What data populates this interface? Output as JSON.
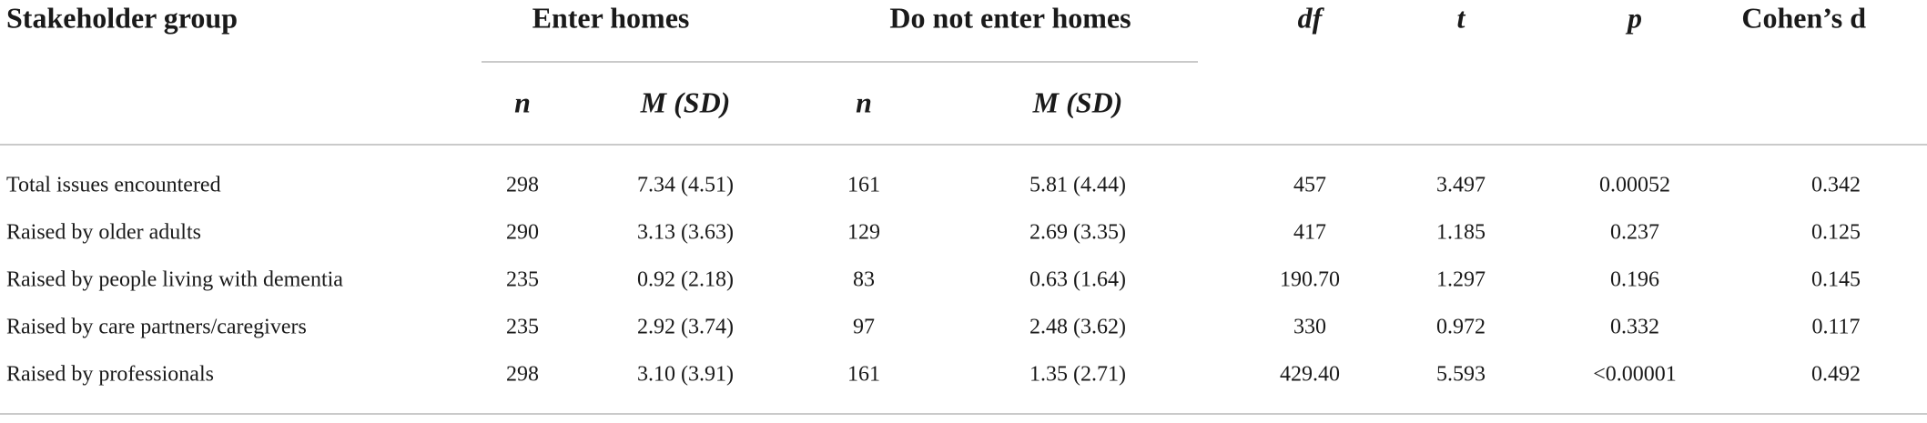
{
  "table": {
    "header_top": [
      "Stakeholder group",
      "Enter homes",
      "Do not enter homes",
      "df",
      "t",
      "p",
      "Cohen’s d"
    ],
    "header_sub": [
      "n",
      "M (SD)",
      "n",
      "M (SD)"
    ],
    "rows": [
      [
        "Total issues encountered",
        "298",
        "7.34 (4.51)",
        "161",
        "5.81 (4.44)",
        "457",
        "3.497",
        "0.00052",
        "0.342"
      ],
      [
        "Raised by older adults",
        "290",
        "3.13 (3.63)",
        "129",
        "2.69 (3.35)",
        "417",
        "1.185",
        "0.237",
        "0.125"
      ],
      [
        "Raised by people living with dementia",
        "235",
        "0.92 (2.18)",
        "83",
        "0.63 (1.64)",
        "190.70",
        "1.297",
        "0.196",
        "0.145"
      ],
      [
        "Raised by care partners/caregivers",
        "235",
        "2.92 (3.74)",
        "97",
        "2.48 (3.62)",
        "330",
        "0.972",
        "0.332",
        "0.117"
      ],
      [
        "Raised by professionals",
        "298",
        "3.10 (3.91)",
        "161",
        "1.35 (2.71)",
        "429.40",
        "5.593",
        "<0.00001",
        "0.492"
      ]
    ]
  }
}
